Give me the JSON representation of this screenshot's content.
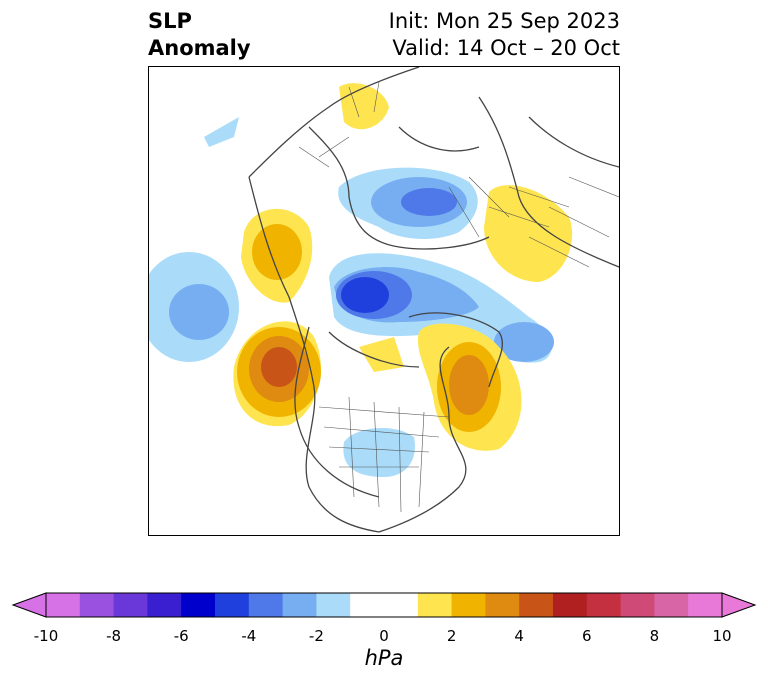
{
  "title": {
    "left_line1": "SLP",
    "left_line2": "Anomaly",
    "right_line1": "Init: Mon 25 Sep 2023",
    "right_line2": "Valid: 14 Oct – 20 Oct"
  },
  "colorbar": {
    "label": "hPa",
    "ticks": [
      "-10",
      "-8",
      "-6",
      "-4",
      "-2",
      "0",
      "2",
      "4",
      "6",
      "8",
      "10"
    ],
    "colors": [
      "#d671e6",
      "#9a51e0",
      "#6a38d8",
      "#3a1fd0",
      "#0000cc",
      "#2040dd",
      "#4f78e8",
      "#77aef2",
      "#aadcfa",
      "#ffffff",
      "#ffffff",
      "#fee44f",
      "#f0b400",
      "#df8a10",
      "#c85418",
      "#b02020",
      "#c43040",
      "#d04a78",
      "#d866a6",
      "#e879d9"
    ]
  }
}
